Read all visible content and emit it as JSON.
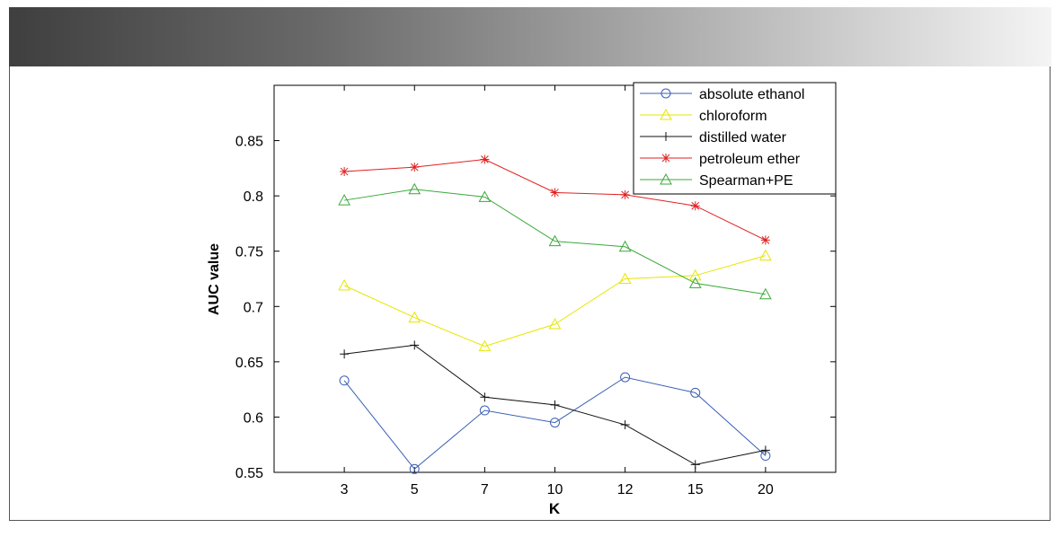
{
  "chart_data": {
    "type": "line",
    "title": "",
    "xlabel": "K",
    "ylabel": "AUC value",
    "categories": [
      "3",
      "5",
      "7",
      "10",
      "12",
      "15",
      "20"
    ],
    "ylim": [
      0.55,
      0.9
    ],
    "yticks": [
      "0.55",
      "0.6",
      "0.65",
      "0.7",
      "0.75",
      "0.8",
      "0.85"
    ],
    "legend_position": "top-right",
    "series": [
      {
        "name": "absolute ethanol",
        "color": "#3a5fb5",
        "marker": "circle",
        "values": [
          0.633,
          0.553,
          0.606,
          0.595,
          0.636,
          0.622,
          0.565
        ]
      },
      {
        "name": "chloroform",
        "color": "#e6e600",
        "marker": "triangle",
        "values": [
          0.719,
          0.69,
          0.664,
          0.684,
          0.725,
          0.728,
          0.746
        ]
      },
      {
        "name": "distilled water",
        "color": "#111111",
        "marker": "plus",
        "values": [
          0.657,
          0.665,
          0.618,
          0.611,
          0.593,
          0.557,
          0.57
        ]
      },
      {
        "name": "petroleum ether",
        "color": "#e02020",
        "marker": "star",
        "values": [
          0.822,
          0.826,
          0.833,
          0.803,
          0.801,
          0.791,
          0.76
        ]
      },
      {
        "name": "Spearman+PE",
        "color": "#3aa83a",
        "marker": "triangle",
        "values": [
          0.796,
          0.806,
          0.799,
          0.759,
          0.754,
          0.721,
          0.711
        ]
      }
    ]
  }
}
